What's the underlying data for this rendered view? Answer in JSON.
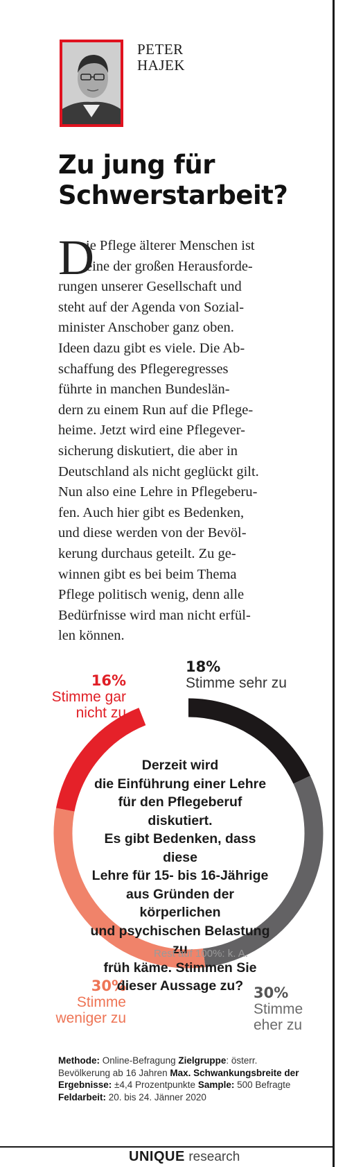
{
  "author": {
    "first": "PETER",
    "last": "HAJEK"
  },
  "headline": {
    "line1": "Zu jung für",
    "line2": "Schwerstarbeit?"
  },
  "article": {
    "dropcap": "D",
    "lines": [
      "ie Pflege älterer Menschen ist",
      "eine der großen Herausforde-",
      "rungen unserer Gesellschaft und",
      "steht auf der Agenda von Sozial-",
      "minister Anschober ganz oben.",
      "Ideen dazu gibt es viele. Die Ab-",
      "schaffung des Pflegeregresses",
      "führte in manchen Bundeslän-",
      "dern zu einem Run auf die Pflege-",
      "heime. Jetzt wird eine Pflegever-",
      "sicherung diskutiert, die aber in",
      "Deutschland als nicht geglückt gilt.",
      "Nun also eine Lehre in Pflegeberu-",
      "fen. Auch hier gibt es Bedenken,",
      "und diese werden von der Bevöl-",
      "kerung durchaus geteilt. Zu ge-",
      "winnen gibt es bei beim Thema",
      "Pflege politisch wenig, denn alle",
      "Bedürfnisse wird man nicht erfül-",
      "len können."
    ]
  },
  "chart_data": {
    "type": "pie",
    "question": "Derzeit wird die Einführung einer Lehre für den Pflegeberuf diskutiert. Es gibt Bedenken, dass diese Lehre für 15- bis 16-Jährige aus Gründen der körperlichen und psychischen Belastung zu früh käme. Stimmen Sie dieser Aussage zu?",
    "question_lines": [
      "Derzeit wird",
      "die Einführung einer Lehre",
      "für den Pflegeberuf diskutiert.",
      "Es gibt Bedenken, dass diese",
      "Lehre für 15- bis 16-Jährige",
      "aus Gründen der körperlichen",
      "und psychischen Belastung zu",
      "früh käme. Stimmen Sie",
      "dieser Aussage zu?"
    ],
    "note": "Rest auf 100%: k. A.",
    "slices": [
      {
        "label": "Stimme sehr zu",
        "label_lines": [
          "Stimme sehr zu"
        ],
        "value": 18,
        "value_label": "18%",
        "color": "#1c1819"
      },
      {
        "label": "Stimme eher zu",
        "label_lines": [
          "Stimme",
          "eher zu"
        ],
        "value": 30,
        "value_label": "30%",
        "color": "#636264"
      },
      {
        "label": "Stimme weniger zu",
        "label_lines": [
          "Stimme",
          "weniger zu"
        ],
        "value": 30,
        "value_label": "30%",
        "color": "#f0836a"
      },
      {
        "label": "Stimme gar nicht zu",
        "label_lines": [
          "Stimme gar",
          "nicht zu"
        ],
        "value": 16,
        "value_label": "16%",
        "color": "#e52129"
      }
    ]
  },
  "methodology": {
    "methode_label": "Methode:",
    "methode": "Online-Befragung",
    "zielgruppe_label": "Zielgruppe",
    "zielgruppe": ": österr. Bevölkerung ab 16 Jahren",
    "schwankung_label": "Max. Schwankungsbreite der Ergebnisse:",
    "schwankung": "±4,4 Prozentpunkte",
    "sample_label": "Sample:",
    "sample": "500 Befragte",
    "feldarbeit_label": "Feldarbeit:",
    "feldarbeit": "20. bis 24. Jänner 2020"
  },
  "logo": {
    "brand": "UNIQUE",
    "suffix": "research"
  },
  "colors": {
    "frame_red": "#e0121f"
  }
}
